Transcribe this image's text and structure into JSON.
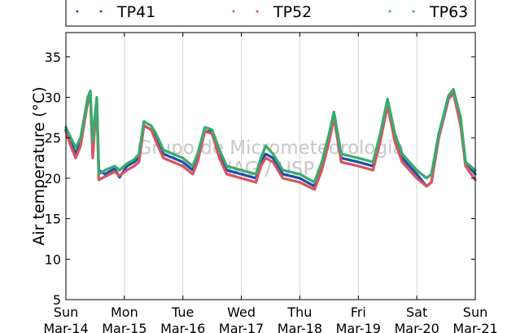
{
  "chart_data": {
    "type": "scatter",
    "ylabel": "Air temperature (°C)",
    "ylim": [
      5,
      38
    ],
    "yticks": [
      5,
      10,
      15,
      20,
      25,
      30,
      35
    ],
    "xlim": [
      "2021-03-14 00:00",
      "2021-03-21 00:00"
    ],
    "xtick_labels": [
      [
        "Sun",
        "Mar-14"
      ],
      [
        "Mon",
        "Mar-15"
      ],
      [
        "Tue",
        "Mar-16"
      ],
      [
        "Wed",
        "Mar-17"
      ],
      [
        "Thu",
        "Mar-18"
      ],
      [
        "Fri",
        "Mar-19"
      ],
      [
        "Sat",
        "Mar-20"
      ],
      [
        "Sun",
        "Mar-21"
      ]
    ],
    "grid": "vertical",
    "legend_position": "top",
    "watermark": [
      "Grupo de Micrometeorologia",
      "IAG / USP"
    ],
    "series": [
      {
        "name": "TP41",
        "color": "#1f4fa8",
        "points": [
          [
            "2021-03-14 00:00",
            26.0
          ],
          [
            "2021-03-14 02:00",
            24.5
          ],
          [
            "2021-03-14 04:00",
            23.0
          ],
          [
            "2021-03-14 06:00",
            24.5
          ],
          [
            "2021-03-14 09:00",
            29.5
          ],
          [
            "2021-03-14 10:00",
            30.3
          ],
          [
            "2021-03-14 11:00",
            23.5
          ],
          [
            "2021-03-14 12:00",
            27.5
          ],
          [
            "2021-03-14 12:40",
            29.5
          ],
          [
            "2021-03-14 13:30",
            21.0
          ],
          [
            "2021-03-14 16:00",
            20.5
          ],
          [
            "2021-03-14 20:00",
            21.2
          ],
          [
            "2021-03-14 22:00",
            20.1
          ],
          [
            "2021-03-15 01:00",
            21.5
          ],
          [
            "2021-03-15 04:00",
            22.0
          ],
          [
            "2021-03-15 06:00",
            22.5
          ],
          [
            "2021-03-15 08:00",
            26.5
          ],
          [
            "2021-03-15 11:00",
            26.0
          ],
          [
            "2021-03-15 13:00",
            25.0
          ],
          [
            "2021-03-15 16:00",
            23.0
          ],
          [
            "2021-03-16 00:00",
            22.0
          ],
          [
            "2021-03-16 04:00",
            21.0
          ],
          [
            "2021-03-16 06:00",
            22.5
          ],
          [
            "2021-03-16 09:00",
            25.8
          ],
          [
            "2021-03-16 12:00",
            25.8
          ],
          [
            "2021-03-16 15:00",
            23.0
          ],
          [
            "2021-03-16 18:00",
            21.0
          ],
          [
            "2021-03-17 00:00",
            20.5
          ],
          [
            "2021-03-17 06:00",
            20.0
          ],
          [
            "2021-03-17 08:00",
            22.0
          ],
          [
            "2021-03-17 10:00",
            23.0
          ],
          [
            "2021-03-17 13:00",
            22.5
          ],
          [
            "2021-03-17 17:00",
            20.5
          ],
          [
            "2021-03-18 00:00",
            20.0
          ],
          [
            "2021-03-18 06:00",
            19.0
          ],
          [
            "2021-03-18 09:00",
            21.5
          ],
          [
            "2021-03-18 12:00",
            25.0
          ],
          [
            "2021-03-18 14:00",
            27.5
          ],
          [
            "2021-03-18 17:00",
            22.5
          ],
          [
            "2021-03-19 00:00",
            22.0
          ],
          [
            "2021-03-19 06:00",
            21.5
          ],
          [
            "2021-03-19 09:00",
            25.0
          ],
          [
            "2021-03-19 12:00",
            29.0
          ],
          [
            "2021-03-19 15:00",
            25.0
          ],
          [
            "2021-03-19 18:00",
            22.5
          ],
          [
            "2021-03-20 00:00",
            20.5
          ],
          [
            "2021-03-20 04:00",
            19.0
          ],
          [
            "2021-03-20 06:00",
            19.5
          ],
          [
            "2021-03-20 09:00",
            25.0
          ],
          [
            "2021-03-20 13:00",
            29.8
          ],
          [
            "2021-03-20 15:00",
            30.5
          ],
          [
            "2021-03-20 18:00",
            27.0
          ],
          [
            "2021-03-20 20:00",
            22.0
          ],
          [
            "2021-03-21 00:00",
            20.5
          ]
        ]
      },
      {
        "name": "TP52",
        "color": "#d9545f",
        "points": [
          [
            "2021-03-14 00:00",
            25.8
          ],
          [
            "2021-03-14 02:00",
            24.0
          ],
          [
            "2021-03-14 04:00",
            22.5
          ],
          [
            "2021-03-14 06:00",
            24.0
          ],
          [
            "2021-03-14 09:00",
            29.5
          ],
          [
            "2021-03-14 10:00",
            30.5
          ],
          [
            "2021-03-14 11:00",
            22.5
          ],
          [
            "2021-03-14 12:00",
            27.0
          ],
          [
            "2021-03-14 12:40",
            29.8
          ],
          [
            "2021-03-14 13:30",
            19.8
          ],
          [
            "2021-03-14 16:00",
            20.2
          ],
          [
            "2021-03-14 20:00",
            20.8
          ],
          [
            "2021-03-14 22:00",
            20.3
          ],
          [
            "2021-03-15 01:00",
            21.0
          ],
          [
            "2021-03-15 04:00",
            21.5
          ],
          [
            "2021-03-15 06:00",
            22.0
          ],
          [
            "2021-03-15 08:00",
            26.5
          ],
          [
            "2021-03-15 11:00",
            26.0
          ],
          [
            "2021-03-15 13:00",
            24.5
          ],
          [
            "2021-03-15 16:00",
            22.5
          ],
          [
            "2021-03-16 00:00",
            21.5
          ],
          [
            "2021-03-16 04:00",
            20.5
          ],
          [
            "2021-03-16 06:00",
            22.0
          ],
          [
            "2021-03-16 09:00",
            25.8
          ],
          [
            "2021-03-16 12:00",
            25.5
          ],
          [
            "2021-03-16 15:00",
            22.5
          ],
          [
            "2021-03-16 18:00",
            20.5
          ],
          [
            "2021-03-17 00:00",
            20.0
          ],
          [
            "2021-03-17 06:00",
            19.5
          ],
          [
            "2021-03-17 08:00",
            21.5
          ],
          [
            "2021-03-17 10:00",
            22.5
          ],
          [
            "2021-03-17 13:00",
            22.0
          ],
          [
            "2021-03-17 17:00",
            20.0
          ],
          [
            "2021-03-18 00:00",
            19.5
          ],
          [
            "2021-03-18 06:00",
            18.6
          ],
          [
            "2021-03-18 09:00",
            21.0
          ],
          [
            "2021-03-18 12:00",
            24.5
          ],
          [
            "2021-03-18 14:00",
            27.5
          ],
          [
            "2021-03-18 17:00",
            22.0
          ],
          [
            "2021-03-19 00:00",
            21.5
          ],
          [
            "2021-03-19 06:00",
            21.0
          ],
          [
            "2021-03-19 09:00",
            24.5
          ],
          [
            "2021-03-19 12:00",
            29.0
          ],
          [
            "2021-03-19 15:00",
            24.5
          ],
          [
            "2021-03-19 18:00",
            22.0
          ],
          [
            "2021-03-20 00:00",
            20.0
          ],
          [
            "2021-03-20 04:00",
            19.0
          ],
          [
            "2021-03-20 06:00",
            19.5
          ],
          [
            "2021-03-20 09:00",
            25.0
          ],
          [
            "2021-03-20 13:00",
            29.8
          ],
          [
            "2021-03-20 15:00",
            30.5
          ],
          [
            "2021-03-20 18:00",
            26.5
          ],
          [
            "2021-03-20 20:00",
            21.5
          ],
          [
            "2021-03-21 00:00",
            19.8
          ]
        ]
      },
      {
        "name": "TP63",
        "color": "#3aab6e",
        "points": [
          [
            "2021-03-14 00:00",
            26.3
          ],
          [
            "2021-03-14 02:00",
            25.0
          ],
          [
            "2021-03-14 04:00",
            23.8
          ],
          [
            "2021-03-14 06:00",
            25.0
          ],
          [
            "2021-03-14 09:00",
            30.0
          ],
          [
            "2021-03-14 10:00",
            30.8
          ],
          [
            "2021-03-14 11:00",
            24.5
          ],
          [
            "2021-03-14 12:00",
            28.0
          ],
          [
            "2021-03-14 12:40",
            30.0
          ],
          [
            "2021-03-14 13:30",
            20.5
          ],
          [
            "2021-03-14 16:00",
            21.0
          ],
          [
            "2021-03-14 20:00",
            21.5
          ],
          [
            "2021-03-14 22:00",
            21.0
          ],
          [
            "2021-03-15 01:00",
            21.8
          ],
          [
            "2021-03-15 04:00",
            22.3
          ],
          [
            "2021-03-15 06:00",
            23.0
          ],
          [
            "2021-03-15 08:00",
            27.0
          ],
          [
            "2021-03-15 11:00",
            26.5
          ],
          [
            "2021-03-15 13:00",
            25.5
          ],
          [
            "2021-03-15 16:00",
            23.5
          ],
          [
            "2021-03-16 00:00",
            22.5
          ],
          [
            "2021-03-16 04:00",
            21.5
          ],
          [
            "2021-03-16 06:00",
            23.0
          ],
          [
            "2021-03-16 09:00",
            26.3
          ],
          [
            "2021-03-16 12:00",
            26.0
          ],
          [
            "2021-03-16 15:00",
            23.5
          ],
          [
            "2021-03-16 18:00",
            21.5
          ],
          [
            "2021-03-17 00:00",
            21.0
          ],
          [
            "2021-03-17 06:00",
            20.5
          ],
          [
            "2021-03-17 08:00",
            22.5
          ],
          [
            "2021-03-17 10:00",
            24.0
          ],
          [
            "2021-03-17 13:00",
            23.0
          ],
          [
            "2021-03-17 17:00",
            21.0
          ],
          [
            "2021-03-18 00:00",
            20.5
          ],
          [
            "2021-03-18 06:00",
            19.5
          ],
          [
            "2021-03-18 09:00",
            22.0
          ],
          [
            "2021-03-18 12:00",
            25.5
          ],
          [
            "2021-03-18 14:00",
            28.2
          ],
          [
            "2021-03-18 17:00",
            23.0
          ],
          [
            "2021-03-19 00:00",
            22.5
          ],
          [
            "2021-03-19 06:00",
            22.0
          ],
          [
            "2021-03-19 09:00",
            25.5
          ],
          [
            "2021-03-19 12:00",
            29.8
          ],
          [
            "2021-03-19 15:00",
            25.5
          ],
          [
            "2021-03-19 18:00",
            23.0
          ],
          [
            "2021-03-20 00:00",
            21.0
          ],
          [
            "2021-03-20 04:00",
            20.0
          ],
          [
            "2021-03-20 06:00",
            20.5
          ],
          [
            "2021-03-20 09:00",
            25.5
          ],
          [
            "2021-03-20 13:00",
            30.2
          ],
          [
            "2021-03-20 15:00",
            31.0
          ],
          [
            "2021-03-20 18:00",
            27.5
          ],
          [
            "2021-03-20 20:00",
            22.0
          ],
          [
            "2021-03-21 00:00",
            21.0
          ]
        ]
      }
    ]
  }
}
